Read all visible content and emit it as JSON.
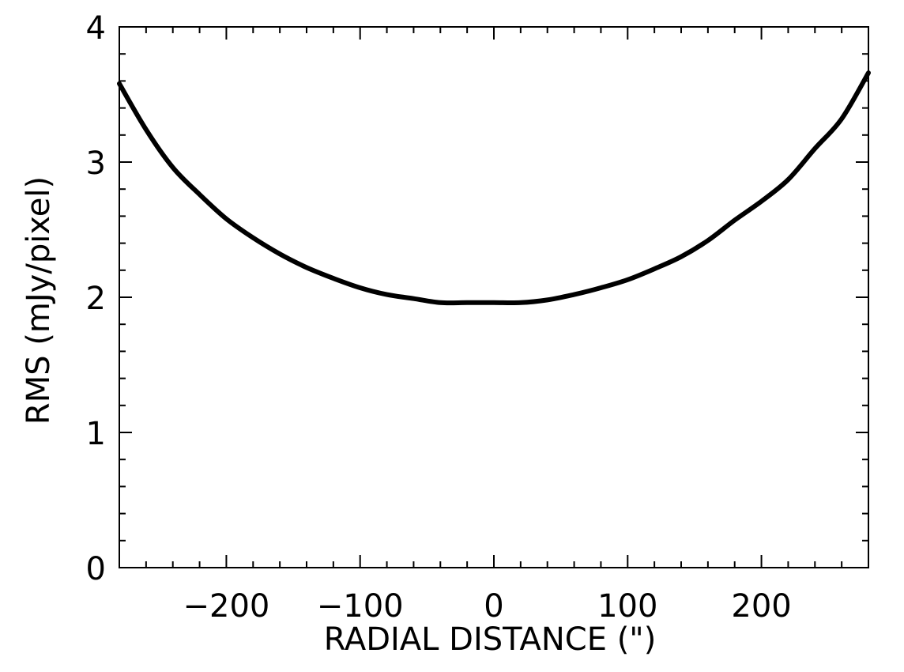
{
  "chart_data": {
    "type": "line",
    "xlabel": "RADIAL DISTANCE (\")",
    "ylabel": "RMS (mJy/pixel)",
    "xlim": [
      -280,
      280
    ],
    "ylim": [
      0,
      4
    ],
    "x_major_ticks": [
      -200,
      -100,
      0,
      100,
      200
    ],
    "x_tick_labels": [
      "−200",
      "−100",
      "0",
      "100",
      "200"
    ],
    "y_major_ticks": [
      0,
      1,
      2,
      3,
      4
    ],
    "y_tick_labels": [
      "0",
      "1",
      "2",
      "3",
      "4"
    ],
    "grid": false,
    "series": [
      {
        "color": "#000000",
        "x": [
          -280,
          -260,
          -240,
          -220,
          -200,
          -180,
          -160,
          -140,
          -120,
          -100,
          -80,
          -60,
          -40,
          -20,
          0,
          20,
          40,
          60,
          80,
          100,
          120,
          140,
          160,
          180,
          200,
          220,
          240,
          260,
          280
        ],
        "y": [
          3.58,
          3.24,
          2.96,
          2.76,
          2.58,
          2.44,
          2.32,
          2.22,
          2.14,
          2.07,
          2.02,
          1.99,
          1.96,
          1.96,
          1.96,
          1.96,
          1.98,
          2.02,
          2.07,
          2.13,
          2.21,
          2.3,
          2.42,
          2.57,
          2.71,
          2.87,
          3.1,
          3.32,
          3.66
        ]
      }
    ]
  }
}
